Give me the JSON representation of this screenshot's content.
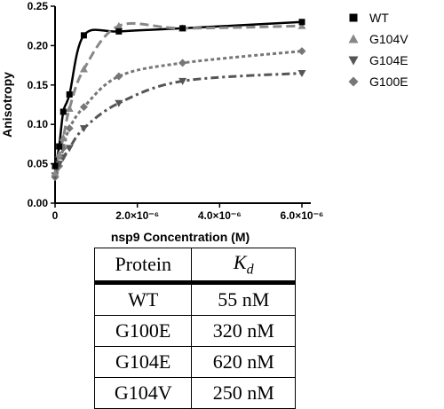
{
  "chart_data": {
    "type": "scatter",
    "xlabel": "nsp9 Concentration (M)",
    "ylabel": "Anisotropy",
    "xlim": [
      0,
      6e-06
    ],
    "ylim": [
      0,
      0.25
    ],
    "x_tick_labels": [
      "0",
      "2.0×10⁻⁶",
      "4.0×10⁻⁶",
      "6.0×10⁻⁶"
    ],
    "x_ticks": [
      0,
      2e-06,
      4e-06,
      6e-06
    ],
    "y_ticks": [
      0.0,
      0.05,
      0.1,
      0.15,
      0.2,
      0.25
    ],
    "y_tick_labels": [
      "0.00",
      "0.05",
      "0.10",
      "0.15",
      "0.20",
      "0.25"
    ],
    "legend_position": "right",
    "series": [
      {
        "name": "WT",
        "marker": "square",
        "color": "#000000",
        "line_style": "solid",
        "x": [
          0,
          1e-07,
          2e-07,
          3.5e-07,
          7e-07,
          1.55e-06,
          3.1e-06,
          6e-06
        ],
        "y": [
          0.047,
          0.072,
          0.116,
          0.138,
          0.213,
          0.218,
          0.222,
          0.23
        ]
      },
      {
        "name": "G104V",
        "marker": "triangle-up",
        "color": "#888888",
        "line_style": "dashed",
        "x": [
          0,
          1e-07,
          2e-07,
          3.5e-07,
          7e-07,
          1.55e-06,
          3.1e-06,
          6e-06
        ],
        "y": [
          0.038,
          0.062,
          0.083,
          0.12,
          0.17,
          0.225,
          0.222,
          0.225
        ]
      },
      {
        "name": "G104E",
        "marker": "triangle-down",
        "color": "#555555",
        "line_style": "dash-dot",
        "x": [
          0,
          1e-07,
          2e-07,
          3.5e-07,
          7e-07,
          1.55e-06,
          3.1e-06,
          6e-06
        ],
        "y": [
          0.035,
          0.05,
          0.058,
          0.07,
          0.095,
          0.127,
          0.155,
          0.165
        ]
      },
      {
        "name": "G100E",
        "marker": "diamond",
        "color": "#777777",
        "line_style": "dotted",
        "x": [
          0,
          1e-07,
          2e-07,
          3.5e-07,
          7e-07,
          1.55e-06,
          3.1e-06,
          6e-06
        ],
        "y": [
          0.033,
          0.047,
          0.07,
          0.095,
          0.122,
          0.161,
          0.178,
          0.193
        ]
      }
    ]
  },
  "table": {
    "headers": [
      "Protein",
      "K",
      "d"
    ],
    "rows": [
      [
        "WT",
        "55 nM"
      ],
      [
        "G100E",
        "320 nM"
      ],
      [
        "G104E",
        "620 nM"
      ],
      [
        "G104V",
        "250 nM"
      ]
    ]
  }
}
